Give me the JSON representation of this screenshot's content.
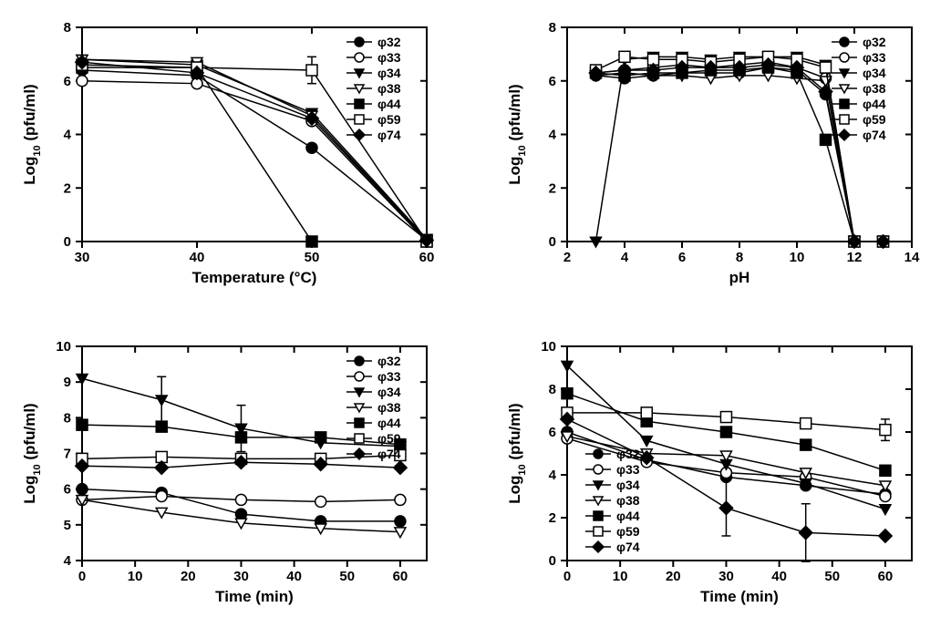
{
  "global": {
    "series_names": [
      "φ32",
      "φ33",
      "φ34",
      "φ38",
      "φ44",
      "φ59",
      "φ74"
    ],
    "markers": [
      "circle-filled",
      "circle-open",
      "triangle-down-filled",
      "triangle-down-open",
      "square-filled",
      "square-open",
      "diamond-filled"
    ],
    "marker_size": 6,
    "line_width": 1.5,
    "line_color": "#000000",
    "background_color": "#ffffff",
    "tick_fontsize": 15,
    "label_fontsize": 17,
    "legend_fontsize": 14,
    "font_weight": "bold"
  },
  "panels": [
    {
      "id": "A",
      "xlabel": "Temperature (°C)",
      "ylabel": "Log₁₀ (pfu/ml)",
      "xlim": [
        30,
        60
      ],
      "xtick_step": 10,
      "ylim": [
        0,
        8
      ],
      "ytick_step": 2,
      "legend_pos": "top-right",
      "x": [
        30,
        40,
        50,
        60
      ],
      "series": {
        "φ32": [
          6.4,
          6.2,
          3.5,
          0.05
        ],
        "φ33": [
          6.0,
          5.9,
          4.5,
          0.0
        ],
        "φ34": [
          6.8,
          6.6,
          4.8,
          0.1
        ],
        "φ38": [
          6.8,
          6.7,
          4.7,
          0.05
        ],
        "φ44": [
          6.5,
          6.5,
          0.0,
          0.0
        ],
        "φ59": [
          6.6,
          6.5,
          6.4,
          0.0
        ],
        "φ74": [
          6.7,
          6.3,
          4.6,
          0.05
        ]
      },
      "errors": {
        "φ59": {
          "50": 0.5
        }
      }
    },
    {
      "id": "B",
      "xlabel": "pH",
      "ylabel": "Log₁₀ (pfu/ml)",
      "xlim": [
        2,
        14
      ],
      "xtick_step": 2,
      "ylim": [
        0,
        8
      ],
      "ytick_step": 2,
      "legend_pos": "top-right",
      "x": [
        3,
        4,
        5,
        6,
        7,
        8,
        9,
        10,
        11,
        12,
        13
      ],
      "series": {
        "φ32": [
          6.2,
          6.1,
          6.2,
          6.3,
          6.3,
          6.3,
          6.5,
          6.4,
          5.5,
          0.0,
          0.0
        ],
        "φ33": [
          6.3,
          6.4,
          6.5,
          6.6,
          6.5,
          6.6,
          6.7,
          6.5,
          6.1,
          0.0,
          0.0
        ],
        "φ34": [
          0.0,
          6.8,
          6.9,
          6.9,
          6.8,
          6.9,
          6.9,
          6.9,
          6.6,
          0.0,
          0.0
        ],
        "φ38": [
          6.2,
          6.3,
          6.2,
          6.2,
          6.1,
          6.2,
          6.2,
          6.1,
          6.0,
          0.0,
          0.0
        ],
        "φ44": [
          6.3,
          6.2,
          6.3,
          6.3,
          6.4,
          6.4,
          6.5,
          6.3,
          3.8,
          0.0,
          0.0
        ],
        "φ59": [
          6.4,
          6.9,
          6.8,
          6.8,
          6.7,
          6.8,
          6.9,
          6.8,
          6.5,
          0.0,
          0.0
        ],
        "φ74": [
          6.3,
          6.4,
          6.4,
          6.5,
          6.5,
          6.5,
          6.6,
          6.5,
          5.6,
          0.0,
          0.0
        ]
      }
    },
    {
      "id": "C",
      "xlabel": "Time (min)",
      "ylabel": "Log₁₀ (pfu/ml)",
      "xlim": [
        0,
        65
      ],
      "xtick_start": 0,
      "xtick_end": 60,
      "xtick_step": 10,
      "ylim": [
        4,
        10
      ],
      "ytick_step": 1,
      "legend_pos": "top-right",
      "x": [
        0,
        15,
        30,
        45,
        60
      ],
      "series": {
        "φ32": [
          6.0,
          5.9,
          5.3,
          5.1,
          5.1
        ],
        "φ33": [
          5.7,
          5.8,
          5.7,
          5.65,
          5.7
        ],
        "φ34": [
          9.1,
          8.5,
          7.7,
          7.3,
          7.2
        ],
        "φ38": [
          5.7,
          5.35,
          5.05,
          4.9,
          4.8
        ],
        "φ44": [
          7.8,
          7.75,
          7.45,
          7.45,
          7.25
        ],
        "φ59": [
          6.85,
          6.9,
          6.85,
          6.85,
          6.95
        ],
        "φ74": [
          6.65,
          6.6,
          6.75,
          6.7,
          6.6
        ]
      },
      "errors": {
        "φ34": {
          "15": 0.65,
          "30": 0.65
        }
      }
    },
    {
      "id": "D",
      "xlabel": "Time (min)",
      "ylabel": "Log₁₀ (pfu/ml)",
      "xlim": [
        0,
        65
      ],
      "xtick_start": 0,
      "xtick_end": 60,
      "xtick_step": 10,
      "ylim": [
        0,
        10
      ],
      "ytick_step": 2,
      "legend_pos": "mid-left",
      "x": [
        0,
        15,
        30,
        45,
        60
      ],
      "series": {
        "φ32": [
          6.0,
          4.7,
          3.9,
          3.5,
          3.1
        ],
        "φ33": [
          5.7,
          4.6,
          4.1,
          3.9,
          3.0
        ],
        "φ34": [
          9.1,
          5.6,
          4.5,
          3.6,
          2.4
        ],
        "φ38": [
          5.8,
          5.0,
          4.9,
          4.1,
          3.5
        ],
        "φ44": [
          7.8,
          6.5,
          6.0,
          5.4,
          4.2
        ],
        "φ59": [
          6.9,
          6.9,
          6.7,
          6.4,
          6.1
        ],
        "φ74": [
          6.6,
          4.8,
          2.45,
          1.3,
          1.15
        ]
      },
      "errors": {
        "φ59": {
          "60": 0.5
        },
        "φ74": {
          "30": 1.3,
          "45": 1.35
        }
      }
    }
  ]
}
